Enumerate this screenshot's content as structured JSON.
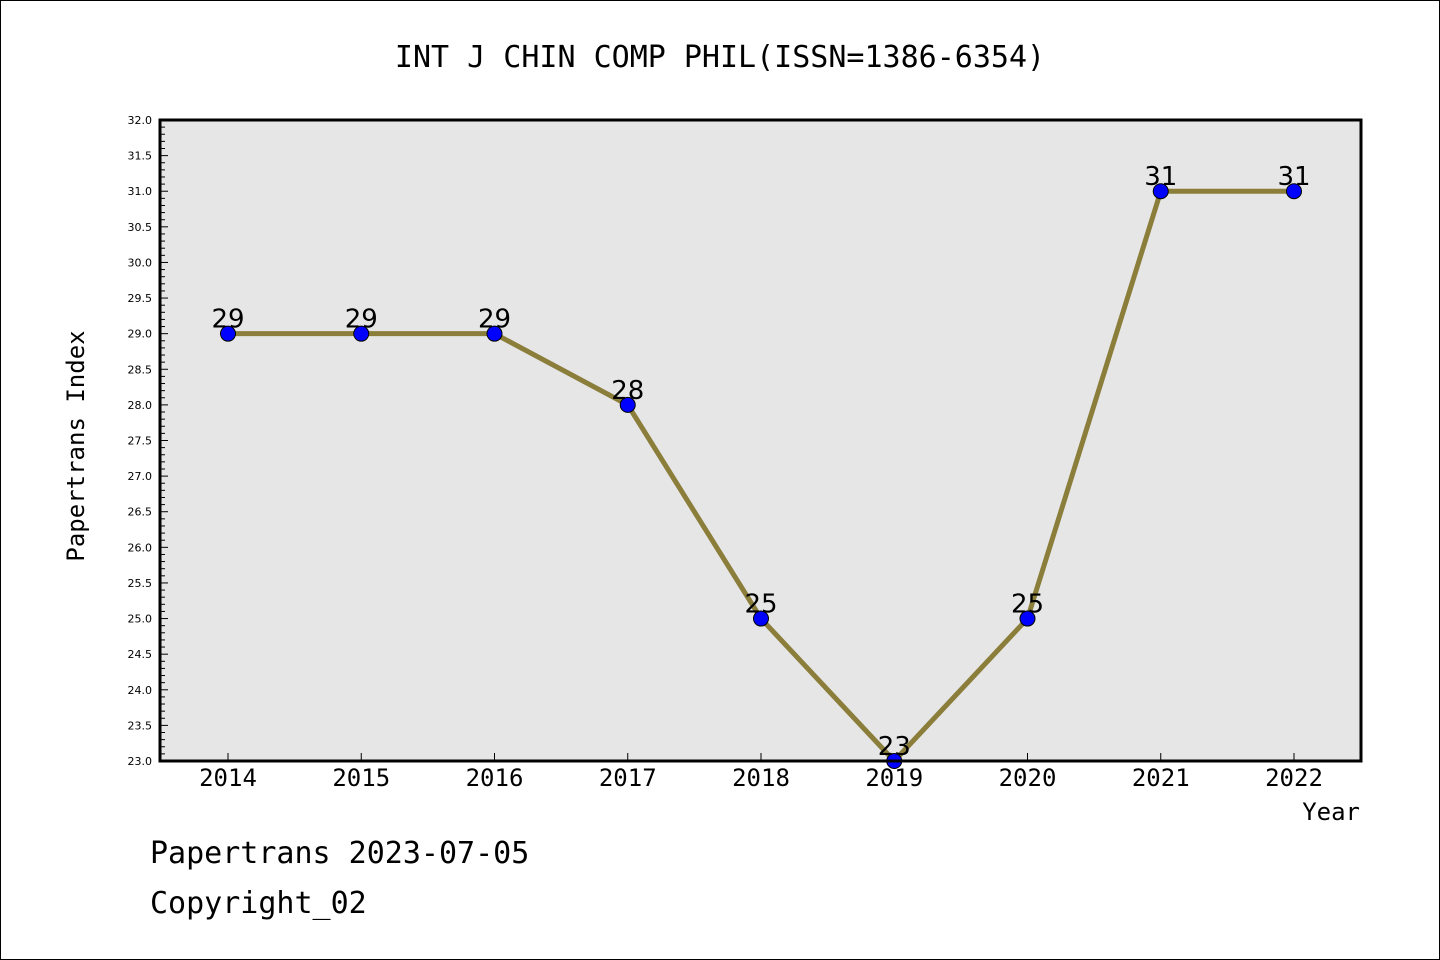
{
  "chart_data": {
    "type": "line",
    "title": "INT J CHIN COMP PHIL(ISSN=1386-6354)",
    "xlabel": "Year",
    "ylabel": "Papertrans Index",
    "categories": [
      "2014",
      "2015",
      "2016",
      "2017",
      "2018",
      "2019",
      "2020",
      "2021",
      "2022"
    ],
    "series": [
      {
        "values": [
          29,
          29,
          29,
          28,
          25,
          23,
          25,
          31,
          31
        ]
      }
    ],
    "data_labels": [
      "29",
      "29",
      "29",
      "28",
      "25",
      "23",
      "25",
      "31",
      "31"
    ],
    "ylim": [
      23.0,
      32.0
    ],
    "y_ticks": [
      "23.0",
      "23.5",
      "24.0",
      "24.5",
      "25.0",
      "25.5",
      "26.0",
      "26.5",
      "27.0",
      "27.5",
      "28.0",
      "28.5",
      "29.0",
      "29.5",
      "30.0",
      "30.5",
      "31.0",
      "31.5",
      "32.0"
    ],
    "grid": false,
    "colors": {
      "line": "#8B7D3A",
      "marker": "#0000FF",
      "plot_background": "#E6E6E6"
    }
  },
  "footer": {
    "line1": "Papertrans 2023-07-05",
    "line2": "Copyright_02"
  }
}
